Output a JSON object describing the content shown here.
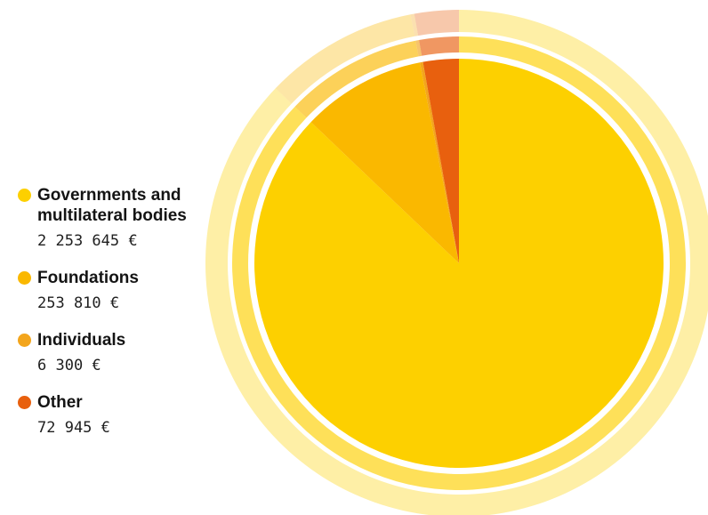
{
  "chart_data": {
    "type": "pie",
    "currency": "€",
    "categories": [
      "Governments and multilateral bodies",
      "Foundations",
      "Individuals",
      "Other"
    ],
    "values": [
      2253645,
      253810,
      6300,
      72945
    ],
    "value_labels": [
      "2 253 645 €",
      "253 810 €",
      "6 300 €",
      "72 945 €"
    ],
    "colors": [
      "#fdd000",
      "#fab800",
      "#f3a51c",
      "#e8600e"
    ],
    "legend_placement": "left",
    "start_angle_deg": 0,
    "direction": "clockwise"
  }
}
